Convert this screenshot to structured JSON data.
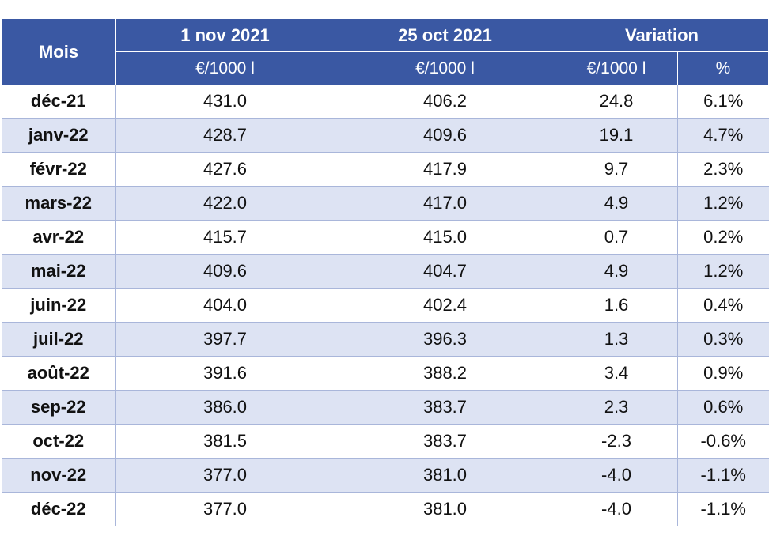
{
  "table": {
    "headers": {
      "month": "Mois",
      "date1": "1 nov 2021",
      "date2": "25 oct 2021",
      "variation": "Variation",
      "unit1": "€/1000 l",
      "unit2": "€/1000 l",
      "unit3": "€/1000 l",
      "pct": "%"
    },
    "rows": [
      [
        "déc-21",
        "431.0",
        "406.2",
        "24.8",
        "6.1%"
      ],
      [
        "janv-22",
        "428.7",
        "409.6",
        "19.1",
        "4.7%"
      ],
      [
        "févr-22",
        "427.6",
        "417.9",
        "9.7",
        "2.3%"
      ],
      [
        "mars-22",
        "422.0",
        "417.0",
        "4.9",
        "1.2%"
      ],
      [
        "avr-22",
        "415.7",
        "415.0",
        "0.7",
        "0.2%"
      ],
      [
        "mai-22",
        "409.6",
        "404.7",
        "4.9",
        "1.2%"
      ],
      [
        "juin-22",
        "404.0",
        "402.4",
        "1.6",
        "0.4%"
      ],
      [
        "juil-22",
        "397.7",
        "396.3",
        "1.3",
        "0.3%"
      ],
      [
        "août-22",
        "391.6",
        "388.2",
        "3.4",
        "0.9%"
      ],
      [
        "sep-22",
        "386.0",
        "383.7",
        "2.3",
        "0.6%"
      ],
      [
        "oct-22",
        "381.5",
        "383.7",
        "-2.3",
        "-0.6%"
      ],
      [
        "nov-22",
        "377.0",
        "381.0",
        "-4.0",
        "-1.1%"
      ],
      [
        "déc-22",
        "377.0",
        "381.0",
        "-4.0",
        "-1.1%"
      ]
    ]
  }
}
